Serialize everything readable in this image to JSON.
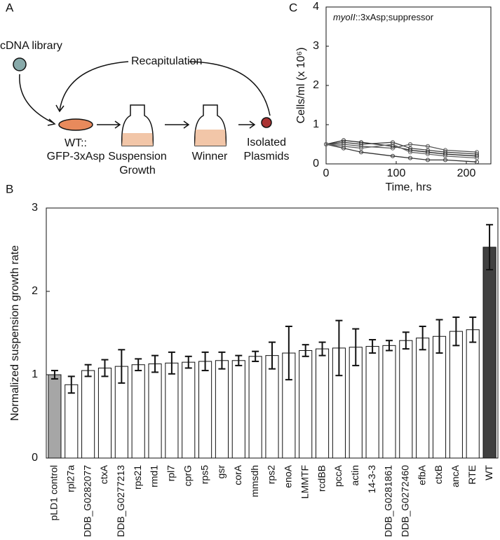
{
  "diagram": {
    "panel_label": "A",
    "library": "cDNA library",
    "recap": "Recapitulation",
    "wt1": "WT::",
    "wt2": "GFP-3xAsp",
    "susp1": "Suspension",
    "susp2": "Growth",
    "winner": "Winner",
    "iso1": "Isolated",
    "iso2": "Plasmids"
  },
  "chart_data": [
    {
      "panel_label": "B",
      "type": "bar",
      "ylabel": "Normalized suspension growth rate",
      "categories": [
        "pLD1 control",
        "rpl27a",
        "DDB_G0282077",
        "ctxA",
        "DDB_G0277213",
        "rps21",
        "rmd1",
        "rpl7",
        "cprG",
        "rps5",
        "gsr",
        "corA",
        "mmsdh",
        "rps2",
        "enoA",
        "LMMTF",
        "rcdBB",
        "pccA",
        "actin",
        "14-3-3",
        "DDB_G0281861",
        "DDB_G0272460",
        "efbA",
        "ctxB",
        "ancA",
        "RTE",
        "WT"
      ],
      "values": [
        1.0,
        0.88,
        1.05,
        1.08,
        1.1,
        1.12,
        1.13,
        1.14,
        1.15,
        1.16,
        1.17,
        1.17,
        1.22,
        1.23,
        1.26,
        1.29,
        1.31,
        1.32,
        1.33,
        1.34,
        1.35,
        1.41,
        1.44,
        1.46,
        1.52,
        1.54,
        2.53
      ],
      "errors": [
        0.05,
        0.1,
        0.07,
        0.1,
        0.2,
        0.07,
        0.1,
        0.13,
        0.07,
        0.11,
        0.1,
        0.06,
        0.06,
        0.16,
        0.32,
        0.07,
        0.08,
        0.33,
        0.22,
        0.08,
        0.06,
        0.1,
        0.14,
        0.2,
        0.17,
        0.15,
        0.27
      ],
      "colors": [
        "#a6a6a6",
        "#ffffff",
        "#ffffff",
        "#ffffff",
        "#ffffff",
        "#ffffff",
        "#ffffff",
        "#ffffff",
        "#ffffff",
        "#ffffff",
        "#ffffff",
        "#ffffff",
        "#ffffff",
        "#ffffff",
        "#ffffff",
        "#ffffff",
        "#ffffff",
        "#ffffff",
        "#ffffff",
        "#ffffff",
        "#ffffff",
        "#ffffff",
        "#ffffff",
        "#ffffff",
        "#ffffff",
        "#ffffff",
        "#404040"
      ],
      "ylim": [
        0,
        3
      ],
      "yticks": [
        0,
        1,
        2,
        3
      ]
    },
    {
      "panel_label": "C",
      "type": "line",
      "annotation": [
        "myoII",
        "::3xAsp;suppressor"
      ],
      "xlabel": "Time, hrs",
      "ylabel": "Cells/ml (x 10⁶)",
      "x": [
        0,
        25,
        50,
        95,
        120,
        145,
        170,
        215
      ],
      "series": [
        {
          "color": "#222222",
          "values": [
            0.5,
            0.6,
            0.55,
            0.45,
            0.35,
            0.3,
            0.25,
            0.2
          ]
        },
        {
          "color": "#444444",
          "values": [
            0.5,
            0.55,
            0.5,
            0.55,
            0.4,
            0.35,
            0.3,
            0.25
          ]
        },
        {
          "color": "#333333",
          "values": [
            0.5,
            0.4,
            0.3,
            0.2,
            0.15,
            0.1,
            0.1,
            0.05
          ]
        },
        {
          "color": "#555555",
          "values": [
            0.5,
            0.5,
            0.45,
            0.4,
            0.5,
            0.45,
            0.35,
            0.3
          ]
        },
        {
          "color": "#666666",
          "values": [
            0.5,
            0.45,
            0.4,
            0.5,
            0.3,
            0.25,
            0.2,
            0.15
          ]
        }
      ],
      "xlim": [
        0,
        235
      ],
      "xticks": [
        0,
        100,
        200
      ],
      "ylim": [
        0,
        4
      ],
      "yticks": [
        0,
        1,
        2,
        3,
        4
      ]
    }
  ]
}
